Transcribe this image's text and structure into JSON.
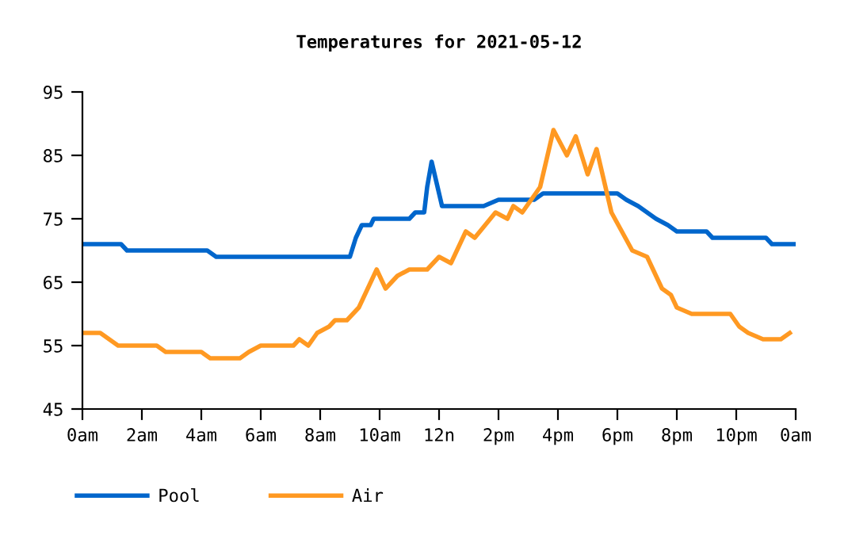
{
  "chart_data": {
    "type": "line",
    "title": "Temperatures for 2021-05-12",
    "xlim": [
      "2021-05-12T00:00",
      "2021-05-13T00:00"
    ],
    "xticks": [
      {
        "value": "2021-05-12T00:00",
        "label": "0am"
      },
      {
        "value": "2021-05-12T02:00",
        "label": "2am"
      },
      {
        "value": "2021-05-12T04:00",
        "label": "4am"
      },
      {
        "value": "2021-05-12T06:00",
        "label": "6am"
      },
      {
        "value": "2021-05-12T08:00",
        "label": "8am"
      },
      {
        "value": "2021-05-12T10:00",
        "label": "10am"
      },
      {
        "value": "2021-05-12T12:00",
        "label": "12n"
      },
      {
        "value": "2021-05-12T14:00",
        "label": "2pm"
      },
      {
        "value": "2021-05-12T16:00",
        "label": "4pm"
      },
      {
        "value": "2021-05-12T18:00",
        "label": "6pm"
      },
      {
        "value": "2021-05-12T20:00",
        "label": "8pm"
      },
      {
        "value": "2021-05-12T22:00",
        "label": "10pm"
      },
      {
        "value": "2021-05-13T00:00",
        "label": "0am"
      }
    ],
    "ylim": [
      45,
      95
    ],
    "yticks": [
      45,
      55,
      65,
      75,
      85,
      95
    ],
    "grid": false,
    "legend": "bottom left",
    "marker": "none",
    "line_style": "solid",
    "series": [
      {
        "name": "Pool",
        "color": "#0066cc",
        "x": [
          "2021-05-12T00:00",
          "2021-05-12T01:18",
          "2021-05-12T01:30",
          "2021-05-12T04:12",
          "2021-05-12T04:30",
          "2021-05-12T09:00",
          "2021-05-12T09:12",
          "2021-05-12T09:24",
          "2021-05-12T09:42",
          "2021-05-12T09:48",
          "2021-05-12T11:00",
          "2021-05-12T11:12",
          "2021-05-12T11:30",
          "2021-05-12T11:36",
          "2021-05-12T11:45",
          "2021-05-12T11:51",
          "2021-05-12T11:57",
          "2021-05-12T12:06",
          "2021-05-12T13:30",
          "2021-05-12T14:00",
          "2021-05-12T15:12",
          "2021-05-12T15:30",
          "2021-05-12T18:00",
          "2021-05-12T18:18",
          "2021-05-12T18:42",
          "2021-05-12T19:00",
          "2021-05-12T19:18",
          "2021-05-12T19:42",
          "2021-05-12T20:00",
          "2021-05-12T21:00",
          "2021-05-12T21:12",
          "2021-05-12T23:00",
          "2021-05-12T23:12",
          "2021-05-13T00:00"
        ],
        "values": [
          71,
          71,
          70,
          70,
          69,
          69,
          72,
          74,
          74,
          75,
          75,
          76,
          76,
          80,
          84,
          82,
          80,
          77,
          77,
          78,
          78,
          79,
          79,
          78,
          77,
          76,
          75,
          74,
          73,
          73,
          72,
          72,
          71,
          71
        ]
      },
      {
        "name": "Air",
        "color": "#ff9922",
        "x": [
          "2021-05-12T00:00",
          "2021-05-12T00:36",
          "2021-05-12T01:12",
          "2021-05-12T02:30",
          "2021-05-12T02:48",
          "2021-05-12T04:00",
          "2021-05-12T04:18",
          "2021-05-12T05:18",
          "2021-05-12T05:36",
          "2021-05-12T06:00",
          "2021-05-12T07:06",
          "2021-05-12T07:18",
          "2021-05-12T07:36",
          "2021-05-12T07:54",
          "2021-05-12T08:18",
          "2021-05-12T08:30",
          "2021-05-12T08:54",
          "2021-05-12T09:18",
          "2021-05-12T09:36",
          "2021-05-12T09:54",
          "2021-05-12T10:12",
          "2021-05-12T10:36",
          "2021-05-12T11:00",
          "2021-05-12T11:36",
          "2021-05-12T12:00",
          "2021-05-12T12:24",
          "2021-05-12T12:54",
          "2021-05-12T13:12",
          "2021-05-12T13:54",
          "2021-05-12T14:18",
          "2021-05-12T14:30",
          "2021-05-12T14:48",
          "2021-05-12T15:06",
          "2021-05-12T15:24",
          "2021-05-12T15:36",
          "2021-05-12T15:51",
          "2021-05-12T16:18",
          "2021-05-12T16:36",
          "2021-05-12T17:00",
          "2021-05-12T17:18",
          "2021-05-12T17:48",
          "2021-05-12T18:30",
          "2021-05-12T19:00",
          "2021-05-12T19:30",
          "2021-05-12T19:48",
          "2021-05-12T20:00",
          "2021-05-12T20:30",
          "2021-05-12T21:48",
          "2021-05-12T22:06",
          "2021-05-12T22:24",
          "2021-05-12T22:54",
          "2021-05-12T23:30",
          "2021-05-12T23:48"
        ],
        "values": [
          57,
          57,
          55,
          55,
          54,
          54,
          53,
          53,
          54,
          55,
          55,
          56,
          55,
          57,
          58,
          59,
          59,
          61,
          64,
          67,
          64,
          66,
          67,
          67,
          69,
          68,
          73,
          72,
          76,
          75,
          77,
          76,
          78,
          80,
          84,
          89,
          85,
          88,
          82,
          86,
          76,
          70,
          69,
          64,
          63,
          61,
          60,
          60,
          58,
          57,
          56,
          56,
          57
        ]
      }
    ]
  }
}
